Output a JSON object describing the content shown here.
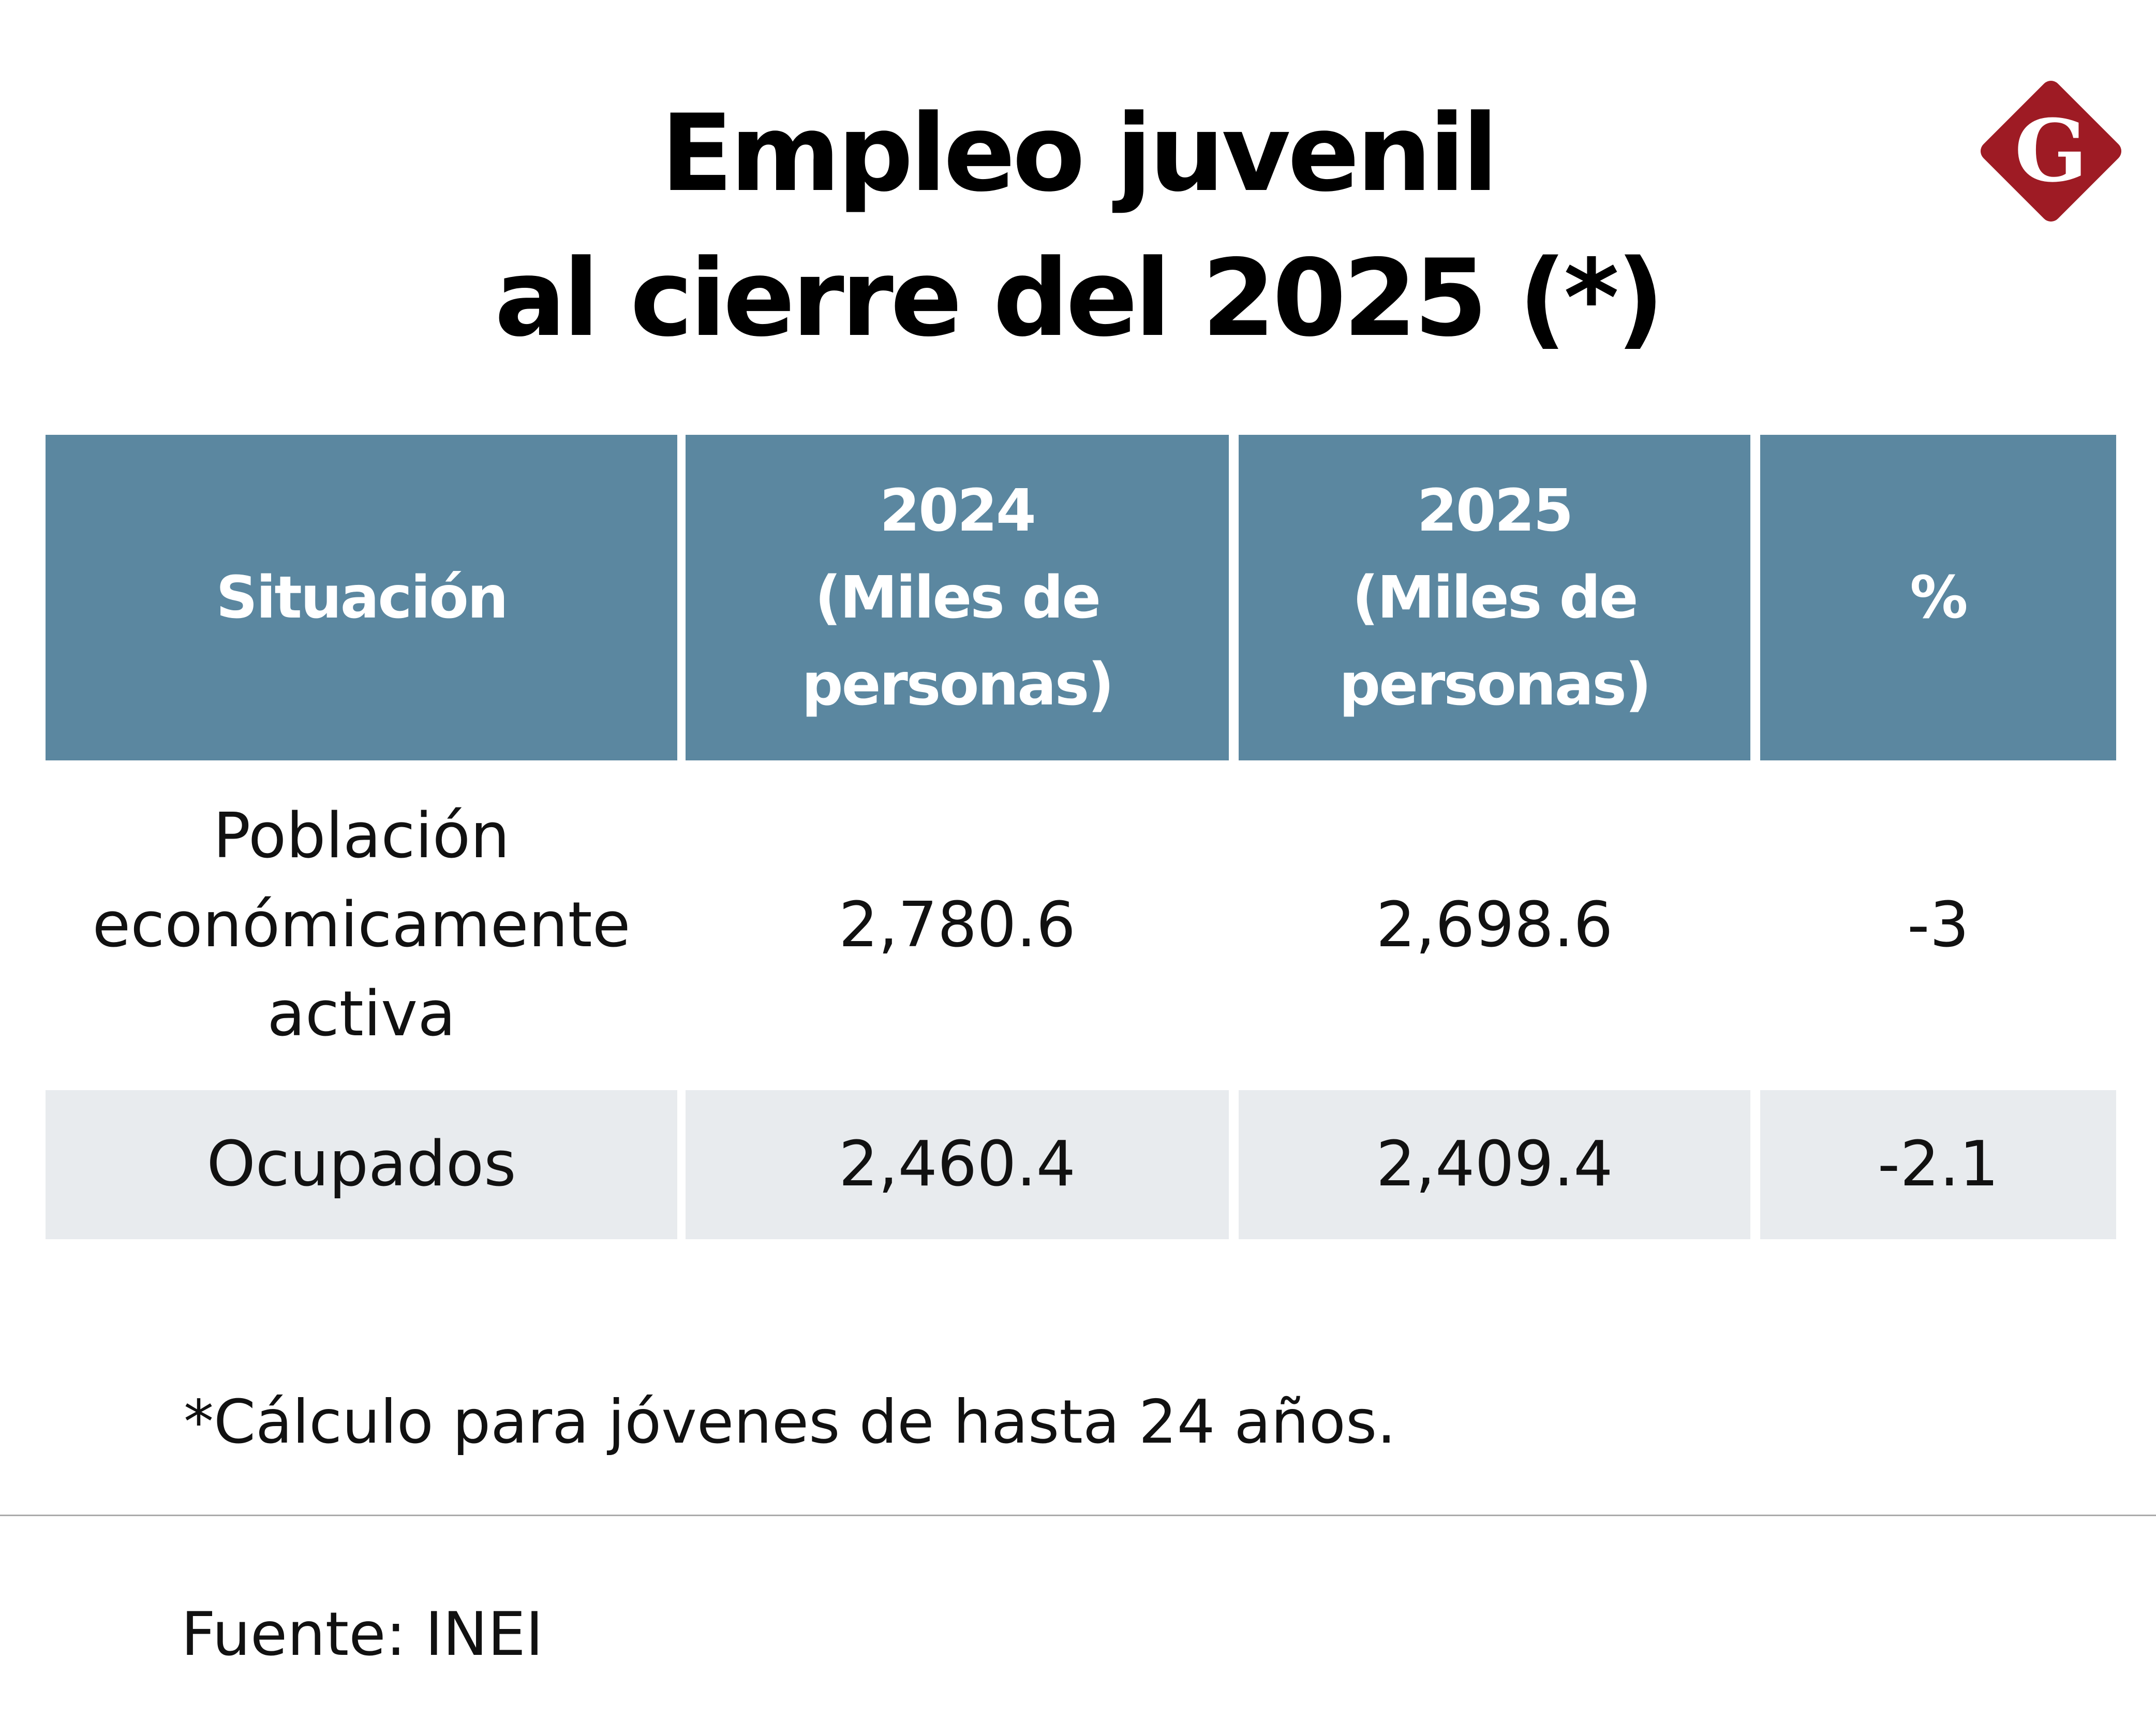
{
  "title": {
    "line1": "Empleo juvenil",
    "line2": "al cierre del 2025 (*)"
  },
  "logo": {
    "letter": "G",
    "color": "#9E1B24"
  },
  "colors": {
    "header_bg": "#5B87A0",
    "alt_row_bg": "#E8EBEE"
  },
  "table": {
    "headers": [
      "Situación",
      "2024 (Miles de personas)",
      "2025 (Miles de personas)",
      "%"
    ],
    "rows": [
      [
        "Población económicamente activa",
        "2,780.6",
        "2,698.6",
        "-3"
      ],
      [
        "Ocupados",
        "2,460.4",
        "2,409.4",
        "-2.1"
      ]
    ]
  },
  "footnote": "*Cálculo para jóvenes de hasta 24 años.",
  "source": "Fuente: INEI"
}
